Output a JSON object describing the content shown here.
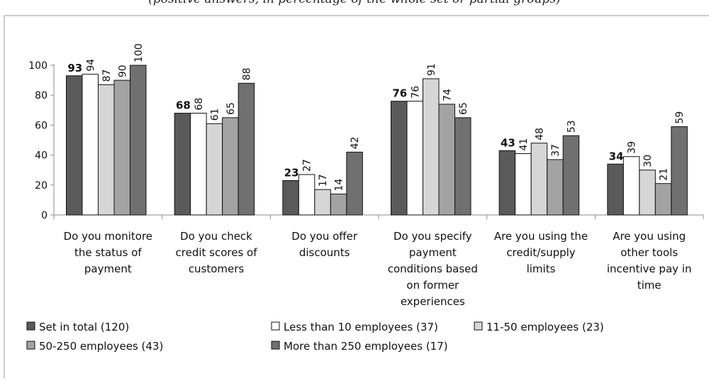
{
  "subtitle": "(positive answers, in percentage of the whole set or partial groups)",
  "colors": {
    "set_total": "#5a5a5a",
    "less_10": "#ffffff",
    "from_11_50": "#d6d6d6",
    "from_50_250": "#a3a3a3",
    "more_250": "#707070",
    "outline": "#111111",
    "axis": "#8c8c8c"
  },
  "chart_data": {
    "type": "bar",
    "title": "",
    "xlabel": "",
    "ylabel": "",
    "ylim": [
      0,
      100
    ],
    "yticks": [
      0,
      20,
      40,
      60,
      80,
      100
    ],
    "grid": false,
    "legend_position": "bottom",
    "categories": [
      [
        "Do you monitore",
        "the status of",
        "payment"
      ],
      [
        "Do you check",
        "credit scores of",
        "customers"
      ],
      [
        "Do you offer",
        "discounts"
      ],
      [
        "Do you specify",
        "payment",
        "conditions based",
        "on former",
        "experiences"
      ],
      [
        "Are you using the",
        "credit/supply",
        "limits"
      ],
      [
        "Are you using",
        "other tools",
        "incentive pay in",
        "time"
      ]
    ],
    "series": [
      {
        "name": "Set in total (120)",
        "color": "#5a5a5a",
        "values": [
          93,
          68,
          23,
          76,
          43,
          34
        ]
      },
      {
        "name": "Less than 10 employees (37)",
        "color": "#ffffff",
        "values": [
          94,
          68,
          27,
          76,
          41,
          39
        ]
      },
      {
        "name": "11-50 employees (23)",
        "color": "#d6d6d6",
        "values": [
          87,
          61,
          17,
          91,
          48,
          30
        ]
      },
      {
        "name": "50-250 employees (43)",
        "color": "#a3a3a3",
        "values": [
          90,
          65,
          14,
          74,
          37,
          21
        ]
      },
      {
        "name": "More than 250 employees (17)",
        "color": "#707070",
        "values": [
          100,
          88,
          42,
          65,
          53,
          59
        ]
      }
    ]
  }
}
